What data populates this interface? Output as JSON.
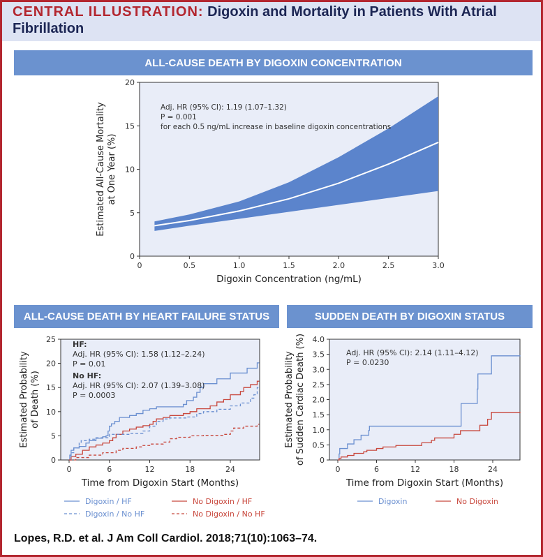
{
  "title": {
    "lead": "CENTRAL ILLUSTRATION:",
    "text": "Digoxin and Mortality in Patients With Atrial Fibrillation"
  },
  "colors": {
    "border": "#b3262f",
    "panel_header": "#6b92cf",
    "plot_bg": "#e9edf8",
    "band": "#5b84cc",
    "blue": "#6a8fd0",
    "red": "#c8473c"
  },
  "citation": "Lopes, R.D. et al. J Am Coll Cardiol. 2018;71(10):1063–74.",
  "chart_data": [
    {
      "type": "area",
      "panel_title": "ALL-CAUSE DEATH BY DIGOXIN CONCENTRATION",
      "xlabel": "Digoxin Concentration (ng/mL)",
      "ylabel": [
        "Estimated All-Cause Mortality",
        "at One Year (%)"
      ],
      "xlim": [
        0,
        3.0
      ],
      "ylim": [
        0,
        20
      ],
      "xticks": [
        "0",
        "0.5",
        "1.0",
        "1.5",
        "2.0",
        "2.5",
        "3.0"
      ],
      "yticks": [
        "0",
        "5",
        "10",
        "15",
        "20"
      ],
      "annotation": [
        "Adj. HR (95% CI): 1.19 (1.07–1.32)",
        "P = 0.001",
        "for each 0.5 ng/mL increase in baseline digoxin concentrations"
      ],
      "x": [
        0.15,
        0.5,
        1.0,
        1.5,
        2.0,
        2.5,
        3.0
      ],
      "estimate": [
        3.5,
        4.1,
        5.2,
        6.6,
        8.4,
        10.6,
        13.1
      ],
      "lower": [
        2.9,
        3.5,
        4.3,
        5.1,
        5.9,
        6.7,
        7.5
      ],
      "upper": [
        4.0,
        4.8,
        6.3,
        8.5,
        11.4,
        14.7,
        18.4
      ]
    },
    {
      "type": "line",
      "panel_title": "ALL-CAUSE DEATH BY HEART FAILURE STATUS",
      "xlabel": "Time from Digoxin Start (Months)",
      "ylabel": [
        "Estimated Probability",
        "of Death (%)"
      ],
      "xlim": [
        0,
        28.3
      ],
      "ylim": [
        0,
        25
      ],
      "xticks": [
        "0",
        "6",
        "12",
        "18",
        "24"
      ],
      "yticks": [
        "0",
        "5",
        "10",
        "15",
        "20",
        "25"
      ],
      "annotation": [
        {
          "text": "HF:",
          "bold": true
        },
        {
          "text": "Adj. HR (95% CI): 1.58 (1.12–2.24)"
        },
        {
          "text": "P = 0.01"
        },
        {
          "text": "No HF:",
          "bold": true
        },
        {
          "text": "Adj. HR (95% CI): 2.07 (1.39–3.08)"
        },
        {
          "text": "P = 0.0003"
        }
      ],
      "series": [
        {
          "name": "Digoxin / HF",
          "color": "blue",
          "dashed": false,
          "points": [
            [
              0,
              0
            ],
            [
              0.1,
              1
            ],
            [
              0.3,
              2
            ],
            [
              0.7,
              2.5
            ],
            [
              1.5,
              2.8
            ],
            [
              2.5,
              3.5
            ],
            [
              3,
              4
            ],
            [
              4,
              4.5
            ],
            [
              5,
              4.8
            ],
            [
              5.5,
              5
            ],
            [
              5.8,
              6
            ],
            [
              6,
              7
            ],
            [
              6.3,
              7.5
            ],
            [
              6.8,
              8
            ],
            [
              7.5,
              8.8
            ],
            [
              9,
              9.2
            ],
            [
              10,
              9.6
            ],
            [
              11,
              10.3
            ],
            [
              12,
              10.6
            ],
            [
              13,
              11
            ],
            [
              17,
              11.5
            ],
            [
              17.5,
              12.3
            ],
            [
              18.5,
              13
            ],
            [
              19,
              14
            ],
            [
              19.5,
              15
            ],
            [
              20,
              15.8
            ],
            [
              22,
              16.8
            ],
            [
              24,
              18
            ],
            [
              26.5,
              19
            ],
            [
              28,
              20.1
            ],
            [
              28.3,
              20.1
            ]
          ]
        },
        {
          "name": "No Digoxin / HF",
          "color": "red",
          "dashed": false,
          "points": [
            [
              0,
              0
            ],
            [
              0.3,
              0.7
            ],
            [
              1,
              1.2
            ],
            [
              2,
              2
            ],
            [
              3,
              2.7
            ],
            [
              4,
              3.1
            ],
            [
              5,
              3.5
            ],
            [
              6,
              4
            ],
            [
              6.5,
              4.6
            ],
            [
              7,
              5.3
            ],
            [
              8,
              6
            ],
            [
              9,
              6.4
            ],
            [
              10,
              6.8
            ],
            [
              11,
              7.1
            ],
            [
              12,
              7.4
            ],
            [
              12.5,
              8
            ],
            [
              13,
              8.5
            ],
            [
              14,
              8.8
            ],
            [
              15,
              9.2
            ],
            [
              17,
              9.6
            ],
            [
              18,
              10
            ],
            [
              19,
              10.6
            ],
            [
              21,
              11.2
            ],
            [
              22,
              12
            ],
            [
              23,
              12.5
            ],
            [
              24,
              13.5
            ],
            [
              25.5,
              14.2
            ],
            [
              26,
              15
            ],
            [
              27,
              15.6
            ],
            [
              28,
              16.3
            ],
            [
              28.3,
              16.3
            ]
          ]
        },
        {
          "name": "Digoxin / No HF",
          "color": "blue",
          "dashed": true,
          "points": [
            [
              0,
              0
            ],
            [
              0.3,
              1.5
            ],
            [
              0.7,
              2.5
            ],
            [
              1.5,
              3.5
            ],
            [
              1.8,
              4
            ],
            [
              3,
              4.3
            ],
            [
              4,
              4.6
            ],
            [
              6,
              5.3
            ],
            [
              9,
              5.5
            ],
            [
              11,
              6
            ],
            [
              12,
              7
            ],
            [
              13,
              8
            ],
            [
              14,
              8.5
            ],
            [
              15,
              8.7
            ],
            [
              17.5,
              8.9
            ],
            [
              19,
              9.6
            ],
            [
              20,
              10
            ],
            [
              22,
              10.5
            ],
            [
              24,
              11.2
            ],
            [
              25.5,
              11.8
            ],
            [
              27,
              12.8
            ],
            [
              27.5,
              13.5
            ],
            [
              28,
              15
            ],
            [
              28.3,
              15
            ]
          ]
        },
        {
          "name": "No Digoxin / No HF",
          "color": "red",
          "dashed": true,
          "points": [
            [
              0,
              0
            ],
            [
              1,
              0.5
            ],
            [
              3,
              1
            ],
            [
              5,
              1.5
            ],
            [
              7,
              2
            ],
            [
              8,
              2.4
            ],
            [
              10,
              2.7
            ],
            [
              11,
              3
            ],
            [
              12,
              3.3
            ],
            [
              14,
              3.7
            ],
            [
              15,
              4.4
            ],
            [
              16,
              4.7
            ],
            [
              18,
              5
            ],
            [
              20,
              5.1
            ],
            [
              23,
              5.3
            ],
            [
              24,
              6
            ],
            [
              24.5,
              6.6
            ],
            [
              26,
              7
            ],
            [
              28,
              7.4
            ],
            [
              28.3,
              7.4
            ]
          ]
        }
      ]
    },
    {
      "type": "line",
      "panel_title": "SUDDEN DEATH  BY DIGOXIN STATUS",
      "xlabel": "Time from Digoxin Start (Months)",
      "ylabel": [
        "Estimated Probability",
        "of Sudden Cardiac Death (%)"
      ],
      "xlim": [
        0,
        28.3
      ],
      "ylim": [
        0,
        4.0
      ],
      "xticks": [
        "0",
        "6",
        "12",
        "18",
        "24"
      ],
      "yticks": [
        "0",
        "0.5",
        "1.0",
        "1.5",
        "2.0",
        "2.5",
        "3.0",
        "3.5",
        "4.0"
      ],
      "annotation": [
        {
          "text": "Adj. HR (95% CI): 2.14 (1.11–4.12)"
        },
        {
          "text": "P = 0.0230"
        }
      ],
      "series": [
        {
          "name": "Digoxin",
          "color": "blue",
          "dashed": false,
          "points": [
            [
              0,
              0
            ],
            [
              0.2,
              0.2
            ],
            [
              0.3,
              0.38
            ],
            [
              1.5,
              0.53
            ],
            [
              2.5,
              0.67
            ],
            [
              3.6,
              0.82
            ],
            [
              4.8,
              0.98
            ],
            [
              4.9,
              1.12
            ],
            [
              19.1,
              1.87
            ],
            [
              21.6,
              2.35
            ],
            [
              21.7,
              2.85
            ],
            [
              23.8,
              3.45
            ],
            [
              28.3,
              3.45
            ]
          ]
        },
        {
          "name": "No Digoxin",
          "color": "red",
          "dashed": false,
          "points": [
            [
              0,
              0
            ],
            [
              0.2,
              0.05
            ],
            [
              0.5,
              0.1
            ],
            [
              1.5,
              0.15
            ],
            [
              2.5,
              0.22
            ],
            [
              4,
              0.27
            ],
            [
              4.5,
              0.32
            ],
            [
              6,
              0.38
            ],
            [
              7,
              0.43
            ],
            [
              9,
              0.48
            ],
            [
              13,
              0.57
            ],
            [
              14.5,
              0.65
            ],
            [
              15,
              0.73
            ],
            [
              18,
              0.85
            ],
            [
              19,
              0.97
            ],
            [
              22,
              1.15
            ],
            [
              23.2,
              1.35
            ],
            [
              23.8,
              1.58
            ],
            [
              28.3,
              1.58
            ]
          ]
        }
      ]
    }
  ]
}
